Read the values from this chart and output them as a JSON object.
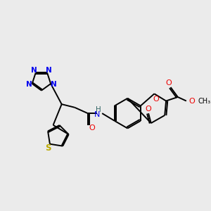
{
  "bg_color": "#ebebeb",
  "atom_colors": {
    "C": "#000000",
    "N": "#0000ee",
    "O": "#ee0000",
    "S": "#bbaa00",
    "H": "#336666"
  },
  "lw": 1.4
}
